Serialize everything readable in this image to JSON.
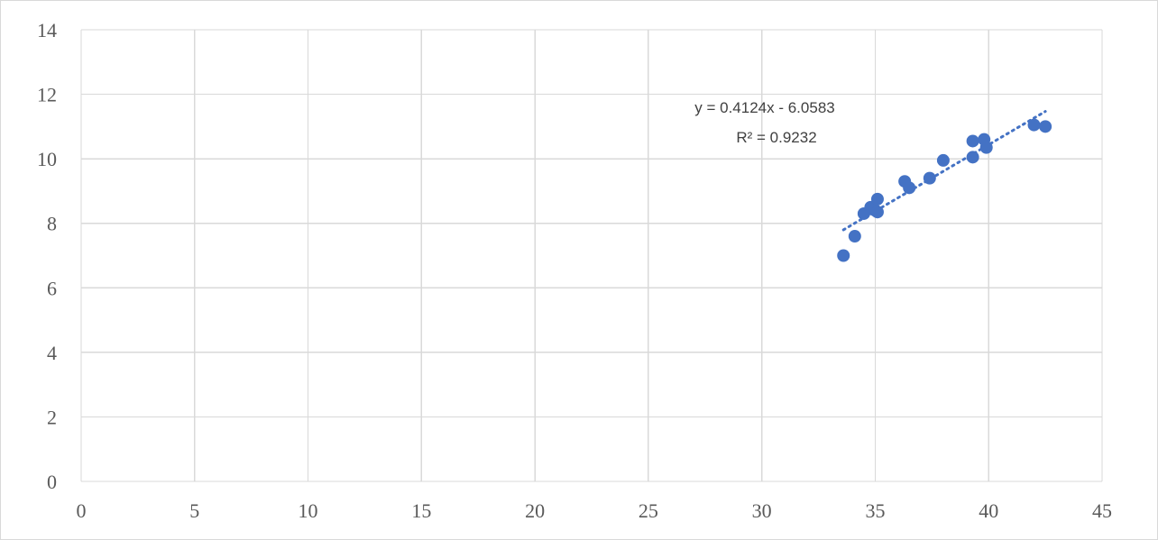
{
  "chart_data": {
    "type": "scatter",
    "title": "",
    "xlabel": "",
    "ylabel": "",
    "xlim": [
      0,
      45
    ],
    "ylim": [
      0,
      14
    ],
    "x_ticks": [
      "0",
      "5",
      "10",
      "15",
      "20",
      "25",
      "30",
      "35",
      "40",
      "45"
    ],
    "y_ticks": [
      "0",
      "2",
      "4",
      "6",
      "8",
      "10",
      "12",
      "14"
    ],
    "grid": true,
    "legend": "none",
    "marker_color": "#4472c4",
    "series": [
      {
        "points": [
          {
            "x": 33.6,
            "y": 7.0
          },
          {
            "x": 34.1,
            "y": 7.6
          },
          {
            "x": 34.5,
            "y": 8.3
          },
          {
            "x": 34.8,
            "y": 8.5
          },
          {
            "x": 35.0,
            "y": 8.4
          },
          {
            "x": 35.1,
            "y": 8.35
          },
          {
            "x": 35.1,
            "y": 8.75
          },
          {
            "x": 36.3,
            "y": 9.3
          },
          {
            "x": 36.5,
            "y": 9.1
          },
          {
            "x": 37.4,
            "y": 9.4
          },
          {
            "x": 38.0,
            "y": 9.95
          },
          {
            "x": 39.3,
            "y": 10.05
          },
          {
            "x": 39.3,
            "y": 10.55
          },
          {
            "x": 39.8,
            "y": 10.6
          },
          {
            "x": 39.9,
            "y": 10.35
          },
          {
            "x": 42.0,
            "y": 11.05
          },
          {
            "x": 42.5,
            "y": 11.0
          }
        ]
      }
    ],
    "trendline": {
      "type": "linear",
      "slope": 0.4124,
      "intercept": -6.0583,
      "x_range": [
        33.6,
        42.5
      ],
      "equation": "y = 0.4124x - 6.0583",
      "r_squared": "R² = 0.9232"
    }
  }
}
